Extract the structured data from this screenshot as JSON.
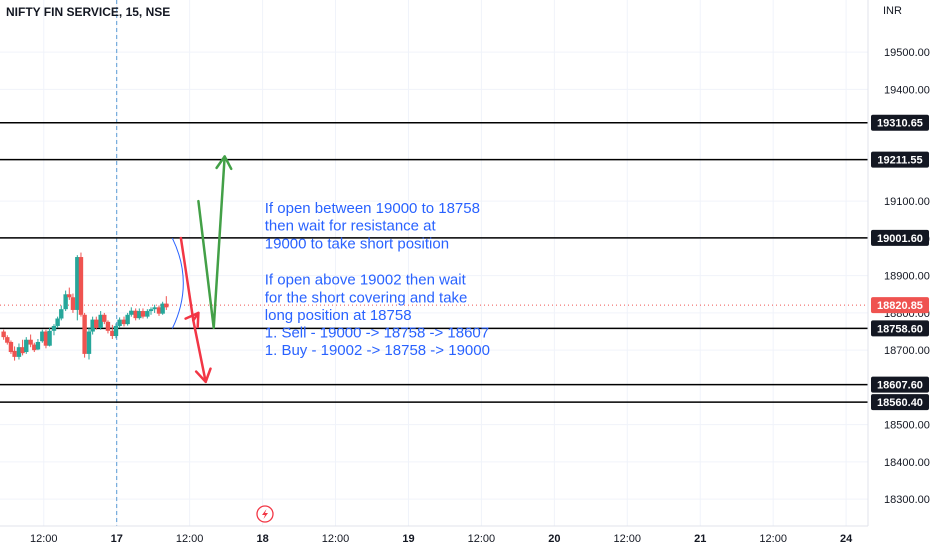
{
  "colors": {
    "up": "#26a69a",
    "down": "#ef5350",
    "grid": "#f0f3fa",
    "annotation_text": "#2962ff",
    "arrow_red": "#f23645",
    "arrow_green": "#43a047",
    "session_line": "#5b9bd5",
    "current_price_badge": "#ef5350"
  },
  "chart_data": {
    "type": "candlestick",
    "title": "NIFTY FIN SERVICE, 15, NSE",
    "currency_label": "INR",
    "y_ticks": [
      "19500.00",
      "19400.00",
      "19100.00",
      "19000.00",
      "18900.00",
      "18800.00",
      "18700.00",
      "18500.00",
      "18400.00",
      "18300.00"
    ],
    "x_ticks": [
      {
        "label": "12:00",
        "x": 0.5
      },
      {
        "label": "17",
        "x": 1.5
      },
      {
        "label": "12:00",
        "x": 2.5
      },
      {
        "label": "18",
        "x": 3.5
      },
      {
        "label": "12:00",
        "x": 4.5
      },
      {
        "label": "19",
        "x": 5.5
      },
      {
        "label": "12:00",
        "x": 6.5
      },
      {
        "label": "20",
        "x": 7.5
      },
      {
        "label": "12:00",
        "x": 8.5
      },
      {
        "label": "21",
        "x": 9.5
      },
      {
        "label": "12:00",
        "x": 10.5
      },
      {
        "label": "24",
        "x": 11.5
      }
    ],
    "ylim": [
      18228,
      19640
    ],
    "xlim": [
      -0.1,
      11.8
    ],
    "grid": true,
    "session_break_x": 1.5,
    "levels": [
      {
        "label": "19310.65",
        "value": 19310.65
      },
      {
        "label": "19211.55",
        "value": 19211.55
      },
      {
        "label": "19001.60",
        "value": 19001.6
      },
      {
        "label": "18758.60",
        "value": 18758.6
      },
      {
        "label": "18607.60",
        "value": 18607.6
      },
      {
        "label": "18560.40",
        "value": 18560.4
      }
    ],
    "current_price": {
      "label": "18820.85",
      "value": 18820.85
    },
    "candles": [
      {
        "x": -0.05,
        "o": 18750,
        "h": 18755,
        "l": 18728,
        "c": 18735
      },
      {
        "x": 0.0,
        "o": 18735,
        "h": 18740,
        "l": 18715,
        "c": 18720
      },
      {
        "x": 0.05,
        "o": 18722,
        "h": 18726,
        "l": 18690,
        "c": 18695
      },
      {
        "x": 0.1,
        "o": 18698,
        "h": 18710,
        "l": 18672,
        "c": 18682
      },
      {
        "x": 0.16,
        "o": 18682,
        "h": 18718,
        "l": 18675,
        "c": 18708
      },
      {
        "x": 0.21,
        "o": 18708,
        "h": 18728,
        "l": 18686,
        "c": 18692
      },
      {
        "x": 0.26,
        "o": 18695,
        "h": 18735,
        "l": 18690,
        "c": 18728
      },
      {
        "x": 0.32,
        "o": 18728,
        "h": 18742,
        "l": 18708,
        "c": 18715
      },
      {
        "x": 0.37,
        "o": 18715,
        "h": 18720,
        "l": 18695,
        "c": 18700
      },
      {
        "x": 0.42,
        "o": 18702,
        "h": 18730,
        "l": 18700,
        "c": 18722
      },
      {
        "x": 0.48,
        "o": 18724,
        "h": 18755,
        "l": 18720,
        "c": 18750
      },
      {
        "x": 0.53,
        "o": 18750,
        "h": 18755,
        "l": 18705,
        "c": 18712
      },
      {
        "x": 0.58,
        "o": 18712,
        "h": 18760,
        "l": 18710,
        "c": 18752
      },
      {
        "x": 0.64,
        "o": 18752,
        "h": 18770,
        "l": 18740,
        "c": 18765
      },
      {
        "x": 0.69,
        "o": 18765,
        "h": 18790,
        "l": 18760,
        "c": 18785
      },
      {
        "x": 0.74,
        "o": 18785,
        "h": 18820,
        "l": 18780,
        "c": 18810
      },
      {
        "x": 0.8,
        "o": 18810,
        "h": 18860,
        "l": 18805,
        "c": 18850
      },
      {
        "x": 0.85,
        "o": 18850,
        "h": 18868,
        "l": 18835,
        "c": 18842
      },
      {
        "x": 0.9,
        "o": 18842,
        "h": 18852,
        "l": 18800,
        "c": 18808
      },
      {
        "x": 0.96,
        "o": 18808,
        "h": 18955,
        "l": 18780,
        "c": 18950
      },
      {
        "x": 1.01,
        "o": 18950,
        "h": 18962,
        "l": 18790,
        "c": 18795
      },
      {
        "x": 1.06,
        "o": 18795,
        "h": 18800,
        "l": 18680,
        "c": 18690
      },
      {
        "x": 1.12,
        "o": 18690,
        "h": 18760,
        "l": 18675,
        "c": 18750
      },
      {
        "x": 1.17,
        "o": 18750,
        "h": 18790,
        "l": 18742,
        "c": 18782
      },
      {
        "x": 1.22,
        "o": 18782,
        "h": 18790,
        "l": 18755,
        "c": 18760
      },
      {
        "x": 1.28,
        "o": 18760,
        "h": 18805,
        "l": 18755,
        "c": 18795
      },
      {
        "x": 1.33,
        "o": 18795,
        "h": 18800,
        "l": 18770,
        "c": 18776
      },
      {
        "x": 1.38,
        "o": 18776,
        "h": 18780,
        "l": 18745,
        "c": 18752
      },
      {
        "x": 1.44,
        "o": 18752,
        "h": 18768,
        "l": 18730,
        "c": 18738
      },
      {
        "x": 1.49,
        "o": 18738,
        "h": 18772,
        "l": 18732,
        "c": 18765
      },
      {
        "x": 1.54,
        "o": 18765,
        "h": 18788,
        "l": 18760,
        "c": 18782
      },
      {
        "x": 1.6,
        "o": 18782,
        "h": 18790,
        "l": 18764,
        "c": 18770
      },
      {
        "x": 1.65,
        "o": 18770,
        "h": 18800,
        "l": 18766,
        "c": 18795
      },
      {
        "x": 1.7,
        "o": 18795,
        "h": 18815,
        "l": 18790,
        "c": 18806
      },
      {
        "x": 1.76,
        "o": 18806,
        "h": 18812,
        "l": 18780,
        "c": 18786
      },
      {
        "x": 1.81,
        "o": 18786,
        "h": 18812,
        "l": 18782,
        "c": 18805
      },
      {
        "x": 1.86,
        "o": 18805,
        "h": 18812,
        "l": 18785,
        "c": 18790
      },
      {
        "x": 1.92,
        "o": 18790,
        "h": 18810,
        "l": 18785,
        "c": 18805
      },
      {
        "x": 1.97,
        "o": 18805,
        "h": 18815,
        "l": 18795,
        "c": 18810
      },
      {
        "x": 2.02,
        "o": 18810,
        "h": 18822,
        "l": 18800,
        "c": 18815
      },
      {
        "x": 2.08,
        "o": 18815,
        "h": 18820,
        "l": 18792,
        "c": 18798
      },
      {
        "x": 2.13,
        "o": 18798,
        "h": 18830,
        "l": 18795,
        "c": 18825
      },
      {
        "x": 2.18,
        "o": 18825,
        "h": 18845,
        "l": 18808,
        "c": 18815
      }
    ],
    "arrows": [
      {
        "color": "red",
        "points": [
          [
            2.38,
            19001
          ],
          [
            2.55,
            18780
          ],
          [
            2.62,
            18800
          ]
        ]
      },
      {
        "color": "red",
        "points": [
          [
            2.55,
            18780
          ],
          [
            2.72,
            18615
          ]
        ]
      },
      {
        "color": "green",
        "points": [
          [
            2.62,
            19100
          ],
          [
            2.83,
            18760
          ],
          [
            2.98,
            19220
          ]
        ]
      }
    ],
    "annotation": {
      "x": 3.53,
      "lines": [
        {
          "text": "If open between 19000 to 18758",
          "y": 19082
        },
        {
          "text": "then wait for resistance at",
          "y": 19034
        },
        {
          "text": "19000 to take short position",
          "y": 18987
        },
        {
          "text": "If open above 19002 then wait",
          "y": 18890
        },
        {
          "text": "for the short covering and take",
          "y": 18842
        },
        {
          "text": "long position at 18758",
          "y": 18795
        },
        {
          "text": "1. Sell - 19000 -> 18758 -> 18607",
          "y": 18748
        },
        {
          "text": "1. Buy - 19002 -> 18758 -> 19000",
          "y": 18700
        }
      ]
    }
  }
}
